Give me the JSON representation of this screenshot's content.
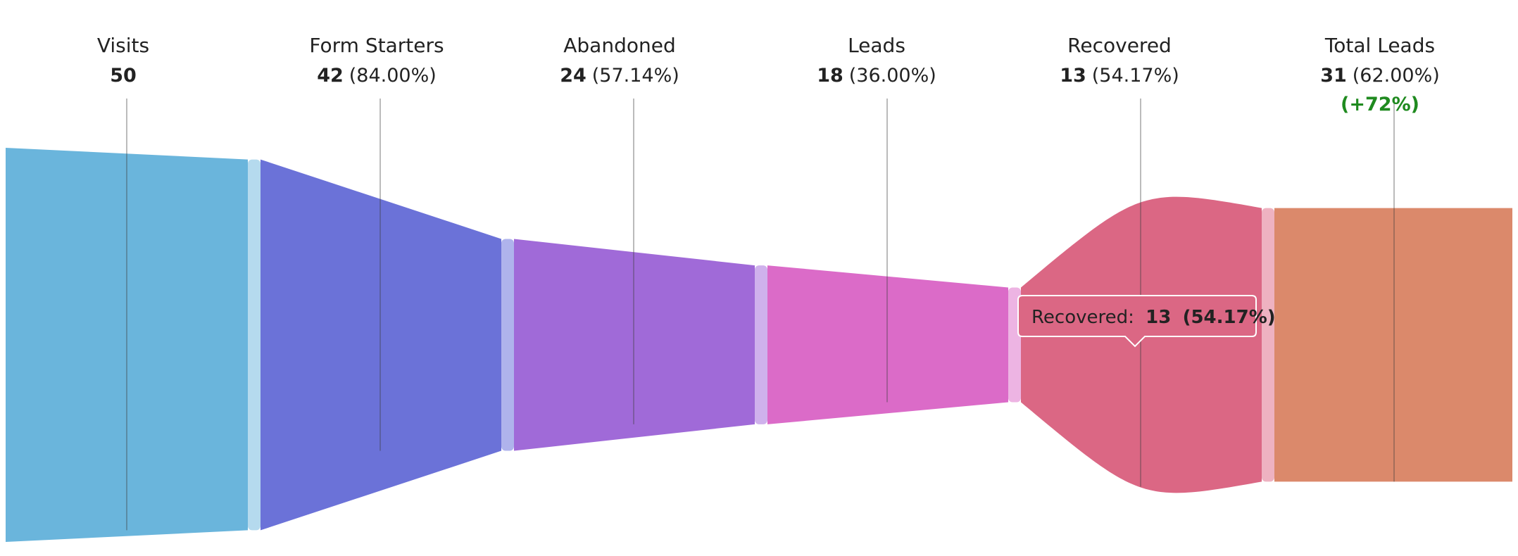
{
  "chart_data": {
    "type": "funnel",
    "title": "",
    "stages": [
      {
        "label": "Visits",
        "value": 50,
        "percent": null,
        "color": "#6AB5DC",
        "connector_color": "#B5DAEE"
      },
      {
        "label": "Form Starters",
        "value": 42,
        "percent": "(84.00%)",
        "color": "#6B72D8",
        "connector_color": "#AFB3EC"
      },
      {
        "label": "Abandoned",
        "value": 24,
        "percent": "(57.14%)",
        "color": "#A06AD8",
        "connector_color": "#CFB1EC"
      },
      {
        "label": "Leads",
        "value": 18,
        "percent": "(36.00%)",
        "color": "#DB6BC8",
        "connector_color": "#EDB4E3"
      },
      {
        "label": "Recovered",
        "value": 13,
        "percent": "(54.17%)",
        "color": "#DB6784",
        "connector_color": "#EEB2C1"
      },
      {
        "label": "Total Leads",
        "value": 31,
        "percent": "(62.00%)",
        "growth": "(+72%)",
        "color": "#DB896B",
        "connector_color": "#EEC4B5"
      }
    ],
    "growth_color": "#1F8A1F",
    "tooltip": {
      "label": "Recovered:",
      "value": "13",
      "percent": "(54.17%)"
    }
  }
}
